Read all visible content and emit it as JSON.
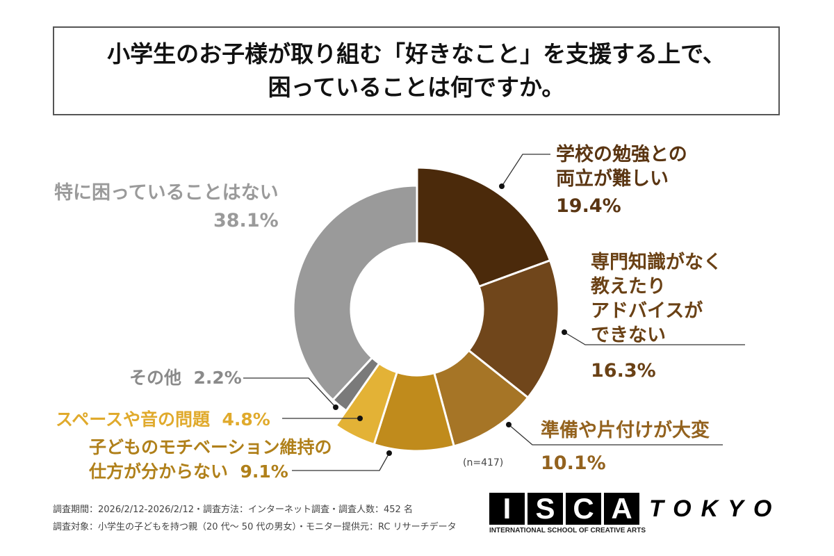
{
  "chart_data": {
    "type": "pie",
    "title": [
      "小学生のお子様が取り組む「好きなこと」を支援する上で、",
      "困っていることは何ですか。"
    ],
    "note": "(n=417)",
    "slices": [
      {
        "label": "学校の勉強との両立が難しい",
        "lines": [
          "学校の勉強との",
          "両立が難しい"
        ],
        "value": 19.4,
        "display": "19.4%",
        "color": "#4b2a0b",
        "label_color": "#5a3512"
      },
      {
        "label": "専門知識がなく教えたりアドバイスができない",
        "lines": [
          "専門知識がなく",
          "教えたり",
          "アドバイスが",
          "できない"
        ],
        "value": 16.3,
        "display": "16.3%",
        "color": "#70461b",
        "label_color": "#6a4115"
      },
      {
        "label": "準備や片付けが大変",
        "lines": [
          "準備や片付けが大変"
        ],
        "value": 10.1,
        "display": "10.1%",
        "color": "#a67526",
        "label_color": "#93621e"
      },
      {
        "label": "子どものモチベーション維持の仕方が分からない",
        "lines": [
          "子どものモチベーション維持の",
          "仕方が分からない"
        ],
        "value": 9.1,
        "display": "9.1%",
        "color": "#c08b1c",
        "label_color": "#b0801a"
      },
      {
        "label": "スペースや音の問題",
        "lines": [
          "スペースや音の問題"
        ],
        "value": 4.8,
        "display": "4.8%",
        "color": "#e3b236",
        "label_color": "#e0aa2c"
      },
      {
        "label": "その他",
        "lines": [
          "その他"
        ],
        "value": 2.2,
        "display": "2.2%",
        "color": "#7a7a7a",
        "label_color": "#8a8a8a"
      },
      {
        "label": "特に困っていることはない",
        "lines": [
          "特に困っていることはない"
        ],
        "value": 38.1,
        "display": "38.1%",
        "color": "#9a9a9a",
        "label_color": "#9a9a9a"
      }
    ]
  },
  "footer": {
    "line1": "調査期間：2026/2/12-2026/2/12・調査方法：インターネット調査・調査人数：452 名",
    "line2": "調査対象：小学生の子どもを持つ親（20 代～ 50 代の男女）・モニター提供元：RC リサーチデータ"
  },
  "logo": {
    "letters": [
      "I",
      "S",
      "C",
      "A"
    ],
    "tokyo": "TOKYO",
    "sub": "INTERNATIONAL SCHOOL OF CREATIVE ARTS"
  }
}
